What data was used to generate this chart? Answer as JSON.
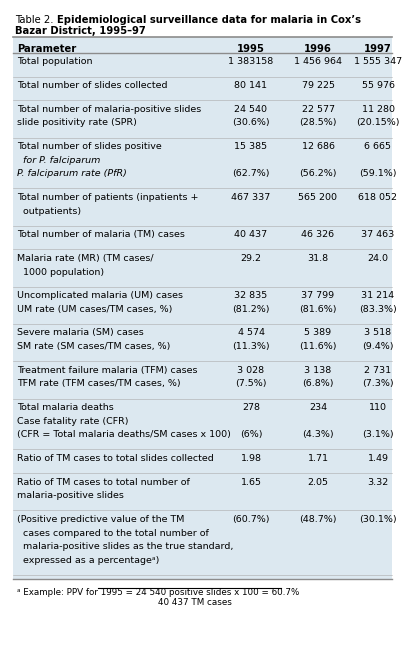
{
  "bg_color": "#dce8f0",
  "title_plain": "Table 2. ",
  "title_bold": "Epidemiological surveillance data for malaria in Cox’s",
  "title_bold2": "Bazar District, 1995–97",
  "col_headers": [
    "Parameter",
    "1995",
    "1996",
    "1997"
  ],
  "rows": [
    {
      "lines": [
        "Total population"
      ],
      "v95": "1 383158",
      "v96": "1 456 964",
      "v97": "1 555 347",
      "italic_lines": [],
      "val_row2": [
        "",
        "",
        ""
      ]
    },
    {
      "lines": [
        "Total number of slides collected"
      ],
      "v95": "80 141",
      "v96": "79 225",
      "v97": "55 976",
      "italic_lines": [],
      "val_row2": [
        "",
        "",
        ""
      ]
    },
    {
      "lines": [
        "Total number of malaria-positive slides",
        "slide positivity rate (SPR)"
      ],
      "v95": "24 540",
      "v96": "22 577",
      "v97": "11 280",
      "italic_lines": [],
      "val_row2": [
        "(30.6%)",
        "(28.5%)",
        "(20.15%)"
      ]
    },
    {
      "lines": [
        "Total number of slides positive",
        "  for P. falciparum",
        "P. falciparum rate (PfR)"
      ],
      "v95": "15 385",
      "v96": "12 686",
      "v97": "6 665",
      "italic_lines": [
        1,
        2
      ],
      "val_row2": [
        "",
        "",
        ""
      ],
      "v95_r3": "(62.7%)",
      "v96_r3": "(56.2%)",
      "v97_r3": "(59.1%)"
    },
    {
      "lines": [
        "Total number of patients (inpatients +",
        "  outpatients)"
      ],
      "v95": "467 337",
      "v96": "565 200",
      "v97": "618 052",
      "italic_lines": [],
      "val_row2": [
        "",
        "",
        ""
      ]
    },
    {
      "lines": [
        "Total number of malaria (TM) cases"
      ],
      "v95": "40 437",
      "v96": "46 326",
      "v97": "37 463",
      "italic_lines": [],
      "val_row2": [
        "",
        "",
        ""
      ]
    },
    {
      "lines": [
        "Malaria rate (MR) (TM cases/",
        "  1000 population)"
      ],
      "v95": "29.2",
      "v96": "31.8",
      "v97": "24.0",
      "italic_lines": [],
      "val_row2": [
        "",
        "",
        ""
      ]
    },
    {
      "lines": [
        "Uncomplicated malaria (UM) cases",
        "UM rate (UM cases/TM cases, %)"
      ],
      "v95": "32 835",
      "v96": "37 799",
      "v97": "31 214",
      "italic_lines": [],
      "val_row2": [
        "(81.2%)",
        "(81.6%)",
        "(83.3%)"
      ]
    },
    {
      "lines": [
        "Severe malaria (SM) cases",
        "SM rate (SM cases/TM cases, %)"
      ],
      "v95": "4 574",
      "v96": "5 389",
      "v97": "3 518",
      "italic_lines": [],
      "val_row2": [
        "(11.3%)",
        "(11.6%)",
        "(9.4%)"
      ]
    },
    {
      "lines": [
        "Treatment failure malaria (TFM) cases",
        "TFM rate (TFM cases/TM cases, %)"
      ],
      "v95": "3 028",
      "v96": "3 138",
      "v97": "2 731",
      "italic_lines": [],
      "val_row2": [
        "(7.5%)",
        "(6.8%)",
        "(7.3%)"
      ]
    },
    {
      "lines": [
        "Total malaria deaths",
        "Case fatality rate (CFR)",
        "(CFR = Total malaria deaths/SM cases x 100)"
      ],
      "v95": "278",
      "v96": "234",
      "v97": "110",
      "italic_lines": [],
      "val_row2": [
        "",
        "",
        ""
      ],
      "v95_r3": "(6%)",
      "v96_r3": "(4.3%)",
      "v97_r3": "(3.1%)"
    },
    {
      "lines": [
        "Ratio of TM cases to total slides collected"
      ],
      "v95": "1.98",
      "v96": "1.71",
      "v97": "1.49",
      "italic_lines": [],
      "val_row2": [
        "",
        "",
        ""
      ]
    },
    {
      "lines": [
        "Ratio of TM cases to total number of",
        "malaria-positive slides"
      ],
      "v95": "1.65",
      "v96": "2.05",
      "v97": "3.32",
      "italic_lines": [],
      "val_row2": [
        "",
        "",
        ""
      ]
    },
    {
      "lines": [
        "(Positive predictive value of the TM",
        "  cases compared to the total number of",
        "  malaria-positive slides as the true standard,",
        "  expressed as a percentageᵃ)"
      ],
      "v95": "(60.7%)",
      "v96": "(48.7%)",
      "v97": "(30.1%)",
      "italic_lines": [],
      "val_row2": [
        "",
        "",
        ""
      ]
    }
  ],
  "footnote1": "ᵃ Example: PPV for 1995 = 24 540 positive slides x 100 = 60.7%",
  "footnote2": "40 437 TM cases"
}
